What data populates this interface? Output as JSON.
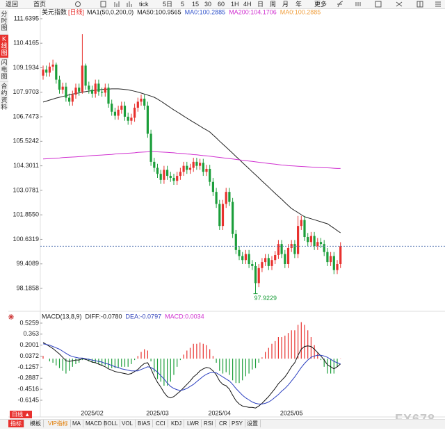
{
  "toolbar": [
    "返回",
    "首页",
    "tick",
    "5日",
    "5",
    "15",
    "30",
    "60",
    "1H",
    "4H",
    "日",
    "周",
    "月",
    "年",
    "更多"
  ],
  "sidebar": [
    "分时图",
    "K线图",
    "闪电图",
    "合约资料"
  ],
  "period_button": "日线 ▲",
  "tabs": [
    "指标",
    "模板",
    "VIP指标",
    "MA",
    "MACD",
    "BOLL",
    "VOL",
    "BIAS",
    "CCI",
    "KDJ",
    "LWR",
    "RSI",
    "CR",
    "PSY",
    "设置"
  ],
  "watermark": "FX678",
  "chart_data": [
    {
      "type": "candlestick",
      "title": "美元指数",
      "subtitle": "[日线]",
      "legend": [
        {
          "text": "MA1(50,0,200,0)",
          "color": "#222222"
        },
        {
          "text": "MA50:100.9565",
          "color": "#222222"
        },
        {
          "text": "MA0:100.2885",
          "color": "#3355cc"
        },
        {
          "text": "MA200:104.1706",
          "color": "#d030d0"
        },
        {
          "text": "MA0:100.2885",
          "color": "#f0a040"
        }
      ],
      "up_color": "#e8312e",
      "down_color": "#1b9e3a",
      "categories": [
        null,
        null,
        null,
        null,
        null,
        null,
        null,
        null,
        null,
        null,
        null,
        null,
        null,
        null,
        null,
        "2025/02",
        null,
        null,
        null,
        null,
        null,
        null,
        null,
        null,
        null,
        null,
        null,
        null,
        null,
        null,
        null,
        null,
        null,
        null,
        null,
        "2025/03",
        null,
        null,
        null,
        null,
        null,
        null,
        null,
        null,
        null,
        null,
        null,
        null,
        null,
        null,
        null,
        null,
        null,
        null,
        "2025/04",
        null,
        null,
        null,
        null,
        null,
        null,
        null,
        null,
        null,
        null,
        null,
        null,
        null,
        null,
        null,
        null,
        null,
        null,
        null,
        null,
        null,
        "2025/05",
        null,
        null,
        null,
        null,
        null,
        null,
        null,
        null,
        null,
        null,
        null,
        null,
        null,
        null,
        null
      ],
      "open": [
        108.8,
        109.1,
        108.95,
        109.25,
        109.35,
        108.6,
        108.1,
        108.25,
        107.7,
        107.5,
        107.85,
        108.2,
        108.0,
        109.3,
        108.3,
        108.1,
        107.9,
        108.4,
        108.0,
        107.95,
        108.2,
        107.4,
        107.0,
        106.8,
        107.1,
        107.3,
        106.75,
        106.55,
        106.7,
        107.2,
        107.5,
        107.65,
        107.3,
        105.9,
        104.5,
        104.2,
        103.9,
        103.6,
        104.1,
        103.8,
        103.7,
        103.55,
        103.8,
        104.0,
        104.3,
        104.1,
        104.2,
        104.5,
        104.3,
        104.45,
        104.0,
        104.15,
        103.5,
        103.0,
        102.4,
        101.3,
        102.4,
        103.0,
        102.5,
        100.9,
        100.1,
        99.8,
        99.6,
        99.9,
        99.4,
        99.3,
        98.45,
        99.2,
        99.5,
        99.7,
        99.3,
        99.6,
        99.85,
        100.4,
        99.9,
        99.4,
        100.2,
        100.4,
        99.9,
        101.3,
        101.6,
        100.75,
        100.5,
        100.8,
        100.3,
        100.5,
        100.4,
        100.0,
        99.5,
        99.8,
        99.1,
        99.4
      ],
      "high": [
        109.3,
        109.3,
        109.45,
        109.6,
        109.45,
        108.8,
        108.45,
        108.45,
        107.9,
        108.05,
        108.4,
        108.4,
        110.87,
        109.4,
        108.5,
        108.3,
        108.6,
        108.6,
        108.2,
        108.4,
        108.4,
        107.6,
        107.2,
        107.3,
        107.5,
        107.5,
        106.95,
        106.9,
        107.4,
        107.7,
        107.85,
        107.85,
        107.5,
        106.1,
        104.7,
        104.4,
        104.1,
        104.3,
        104.3,
        104.0,
        103.9,
        104.0,
        104.2,
        104.5,
        104.5,
        104.4,
        104.7,
        104.7,
        104.65,
        104.65,
        104.35,
        104.35,
        103.7,
        103.2,
        102.6,
        102.6,
        103.2,
        103.2,
        102.7,
        101.1,
        100.3,
        100.0,
        100.1,
        100.1,
        99.6,
        99.5,
        99.4,
        99.7,
        99.9,
        99.9,
        99.8,
        100.05,
        100.6,
        100.6,
        100.1,
        100.4,
        100.6,
        100.6,
        101.8,
        101.8,
        101.8,
        100.95,
        101.0,
        101.0,
        100.7,
        100.7,
        100.6,
        100.2,
        100.0,
        100.0,
        99.6,
        100.49
      ],
      "low": [
        108.6,
        108.75,
        108.75,
        109.05,
        108.4,
        107.9,
        107.9,
        107.5,
        107.3,
        107.3,
        107.65,
        107.8,
        107.9,
        108.1,
        107.9,
        107.7,
        107.7,
        107.8,
        107.75,
        107.75,
        107.2,
        106.8,
        106.6,
        106.6,
        106.9,
        106.55,
        106.35,
        106.35,
        106.5,
        107.0,
        107.3,
        107.1,
        105.7,
        104.3,
        104.0,
        103.7,
        103.4,
        103.4,
        103.6,
        103.5,
        103.35,
        103.35,
        103.6,
        103.8,
        103.9,
        103.9,
        104.0,
        104.1,
        104.1,
        103.8,
        103.8,
        103.3,
        102.8,
        102.2,
        101.1,
        101.1,
        102.2,
        102.3,
        100.7,
        99.9,
        99.6,
        99.4,
        99.4,
        99.2,
        99.1,
        97.9229,
        98.25,
        99.0,
        99.3,
        99.1,
        99.1,
        99.4,
        99.65,
        99.7,
        99.2,
        99.2,
        100.0,
        99.7,
        99.7,
        101.1,
        100.55,
        100.3,
        100.3,
        100.1,
        100.1,
        100.2,
        99.8,
        99.3,
        99.3,
        98.9,
        98.9,
        99.2
      ],
      "close": [
        109.1,
        108.95,
        109.25,
        109.35,
        108.6,
        108.1,
        108.25,
        107.7,
        107.5,
        107.85,
        108.2,
        108.0,
        109.3,
        108.3,
        108.1,
        107.9,
        108.4,
        108.0,
        107.95,
        108.2,
        107.4,
        107.0,
        106.8,
        107.1,
        107.3,
        106.75,
        106.55,
        106.7,
        107.2,
        107.5,
        107.65,
        107.3,
        105.9,
        104.5,
        104.2,
        103.9,
        103.6,
        104.1,
        103.8,
        103.7,
        103.55,
        103.8,
        104.0,
        104.3,
        104.1,
        104.2,
        104.5,
        104.3,
        104.45,
        104.0,
        104.15,
        103.5,
        103.0,
        102.4,
        101.3,
        102.4,
        103.0,
        102.5,
        100.9,
        100.1,
        99.8,
        99.6,
        99.9,
        99.4,
        99.3,
        98.45,
        99.2,
        99.5,
        99.7,
        99.3,
        99.6,
        99.85,
        100.4,
        99.9,
        99.4,
        100.2,
        100.4,
        99.9,
        101.3,
        101.6,
        100.75,
        100.5,
        100.8,
        100.3,
        100.5,
        100.4,
        100.0,
        99.5,
        99.8,
        99.1,
        99.4,
        100.29
      ],
      "series": [
        {
          "color": "#222222",
          "values": [
            107.48,
            107.53,
            107.58,
            107.63,
            107.68,
            107.72,
            107.76,
            107.8,
            107.84,
            107.88,
            107.91,
            107.94,
            107.97,
            108.0,
            108.03,
            108.05,
            108.07,
            108.09,
            108.11,
            108.12,
            108.13,
            108.14,
            108.14,
            108.14,
            108.13,
            108.11,
            108.09,
            108.06,
            108.02,
            107.98,
            107.93,
            107.88,
            107.83,
            107.78,
            107.72,
            107.63,
            107.53,
            107.42,
            107.31,
            107.2,
            107.09,
            106.99,
            106.89,
            106.78,
            106.68,
            106.58,
            106.48,
            106.38,
            106.28,
            106.18,
            106.09,
            105.99,
            105.84,
            105.69,
            105.53,
            105.38,
            105.23,
            105.08,
            104.93,
            104.77,
            104.62,
            104.46,
            104.31,
            104.16,
            104.0,
            103.85,
            103.7,
            103.54,
            103.39,
            103.24,
            103.08,
            102.93,
            102.78,
            102.63,
            102.47,
            102.32,
            102.17,
            102.07,
            101.97,
            101.86,
            101.76,
            101.71,
            101.66,
            101.61,
            101.56,
            101.51,
            101.46,
            101.41,
            101.3,
            101.19,
            101.07,
            100.96
          ]
        },
        {
          "color": "#d030d0",
          "values": [
            104.64,
            104.65,
            104.66,
            104.67,
            104.68,
            104.69,
            104.71,
            104.72,
            104.73,
            104.74,
            104.75,
            104.76,
            104.77,
            104.78,
            104.8,
            104.81,
            104.82,
            104.83,
            104.84,
            104.85,
            104.86,
            104.87,
            104.89,
            104.9,
            104.91,
            104.92,
            104.93,
            104.94,
            104.95,
            104.97,
            104.98,
            104.99,
            105.0,
            105.02,
            105.01,
            105.0,
            104.99,
            104.98,
            104.97,
            104.96,
            104.95,
            104.93,
            104.92,
            104.91,
            104.89,
            104.88,
            104.86,
            104.85,
            104.83,
            104.81,
            104.8,
            104.78,
            104.76,
            104.74,
            104.72,
            104.7,
            104.68,
            104.66,
            104.64,
            104.62,
            104.6,
            104.58,
            104.56,
            104.54,
            104.52,
            104.5,
            104.48,
            104.46,
            104.44,
            104.42,
            104.4,
            104.38,
            104.36,
            104.34,
            104.33,
            104.31,
            104.3,
            104.29,
            104.28,
            104.27,
            104.26,
            104.25,
            104.24,
            104.23,
            104.22,
            104.21,
            104.2,
            104.2,
            104.19,
            104.18,
            104.17,
            104.17
          ]
        }
      ],
      "low_label_index": 65,
      "ylim": [
        97.32,
        111.81
      ],
      "yticks": [
        111.6395,
        110.4165,
        109.1934,
        107.9703,
        106.7473,
        105.5242,
        104.3011,
        103.0781,
        {
          "value": 101.855,
          "label": "101.8550"
        },
        100.6319,
        99.4089,
        98.1858
      ]
    },
    {
      "type": "macd",
      "legend": [
        {
          "text": "MACD(13,8,9)",
          "color": "#222222"
        },
        {
          "text": "DIFF:-0.0780",
          "color": "#222222"
        },
        {
          "text": "DEA:-0.0797",
          "color": "#3344bb"
        },
        {
          "text": "MACD:0.0034",
          "color": "#d030d0"
        }
      ],
      "series": [
        {
          "color": "#111111",
          "values": [
            0.24,
            0.21,
            0.18,
            0.15,
            0.11,
            0.07,
            0.02,
            -0.03,
            -0.04,
            -0.03,
            -0.02,
            -0.02,
            0.0,
            -0.01,
            -0.03,
            -0.05,
            -0.06,
            -0.08,
            -0.1,
            -0.12,
            -0.15,
            -0.17,
            -0.19,
            -0.2,
            -0.21,
            -0.22,
            -0.23,
            -0.22,
            -0.19,
            -0.16,
            -0.11,
            -0.07,
            -0.06,
            -0.15,
            -0.26,
            -0.35,
            -0.42,
            -0.5,
            -0.56,
            -0.58,
            -0.56,
            -0.52,
            -0.48,
            -0.43,
            -0.38,
            -0.33,
            -0.27,
            -0.23,
            -0.18,
            -0.15,
            -0.13,
            -0.14,
            -0.18,
            -0.24,
            -0.33,
            -0.38,
            -0.4,
            -0.45,
            -0.54,
            -0.62,
            -0.67,
            -0.7,
            -0.71,
            -0.72,
            -0.72,
            -0.73,
            -0.7,
            -0.66,
            -0.61,
            -0.56,
            -0.5,
            -0.44,
            -0.37,
            -0.32,
            -0.27,
            -0.2,
            -0.12,
            -0.06,
            0.05,
            0.14,
            0.18,
            0.19,
            0.18,
            0.14,
            0.09,
            0.04,
            -0.02,
            -0.09,
            -0.12,
            -0.15,
            -0.12,
            -0.078
          ]
        },
        {
          "color": "#2b3fc0",
          "values": [
            0.22,
            0.21,
            0.2,
            0.18,
            0.16,
            0.14,
            0.11,
            0.08,
            0.05,
            0.03,
            0.02,
            0.01,
            0.01,
            0.0,
            -0.01,
            -0.02,
            -0.03,
            -0.04,
            -0.05,
            -0.07,
            -0.08,
            -0.1,
            -0.12,
            -0.13,
            -0.15,
            -0.16,
            -0.17,
            -0.18,
            -0.18,
            -0.18,
            -0.16,
            -0.14,
            -0.12,
            -0.13,
            -0.16,
            -0.2,
            -0.25,
            -0.3,
            -0.36,
            -0.41,
            -0.44,
            -0.46,
            -0.47,
            -0.46,
            -0.44,
            -0.41,
            -0.38,
            -0.34,
            -0.3,
            -0.26,
            -0.23,
            -0.21,
            -0.2,
            -0.21,
            -0.24,
            -0.27,
            -0.3,
            -0.33,
            -0.38,
            -0.44,
            -0.49,
            -0.54,
            -0.58,
            -0.61,
            -0.64,
            -0.66,
            -0.67,
            -0.67,
            -0.66,
            -0.64,
            -0.61,
            -0.57,
            -0.53,
            -0.48,
            -0.44,
            -0.39,
            -0.33,
            -0.27,
            -0.2,
            -0.13,
            -0.07,
            -0.02,
            0.02,
            0.04,
            0.05,
            0.05,
            0.04,
            0.02,
            -0.01,
            -0.04,
            -0.06,
            -0.0797
          ]
        }
      ],
      "histogram": {
        "up_color": "#e8312e",
        "down_color": "#1b9e3a",
        "values": [
          0.04,
          0.0,
          -0.04,
          -0.06,
          -0.1,
          -0.14,
          -0.18,
          -0.22,
          -0.18,
          -0.12,
          -0.08,
          -0.06,
          -0.02,
          -0.02,
          -0.04,
          -0.06,
          -0.06,
          -0.08,
          -0.1,
          -0.1,
          -0.14,
          -0.14,
          -0.14,
          -0.14,
          -0.12,
          -0.12,
          -0.12,
          -0.08,
          -0.02,
          0.04,
          0.1,
          0.14,
          0.12,
          -0.04,
          -0.2,
          -0.3,
          -0.34,
          -0.4,
          -0.4,
          -0.34,
          -0.24,
          -0.12,
          -0.02,
          0.06,
          0.12,
          0.16,
          0.22,
          0.22,
          0.24,
          0.22,
          0.2,
          0.14,
          0.04,
          -0.06,
          -0.18,
          -0.22,
          -0.2,
          -0.24,
          -0.32,
          -0.36,
          -0.36,
          -0.32,
          -0.26,
          -0.22,
          -0.16,
          -0.14,
          -0.06,
          0.02,
          0.1,
          0.16,
          0.22,
          0.26,
          0.32,
          0.32,
          0.34,
          0.38,
          0.42,
          0.42,
          0.5,
          0.54,
          0.5,
          0.42,
          0.32,
          0.2,
          0.08,
          -0.02,
          -0.12,
          -0.22,
          -0.22,
          -0.22,
          -0.12,
          0.0034
        ]
      },
      "ylim": [
        -0.738,
        0.577
      ],
      "yticks": [
        0.5259,
        0.363,
        0.2001,
        0.0372,
        -0.1257,
        -0.2887,
        -0.4516,
        -0.6145
      ]
    }
  ]
}
